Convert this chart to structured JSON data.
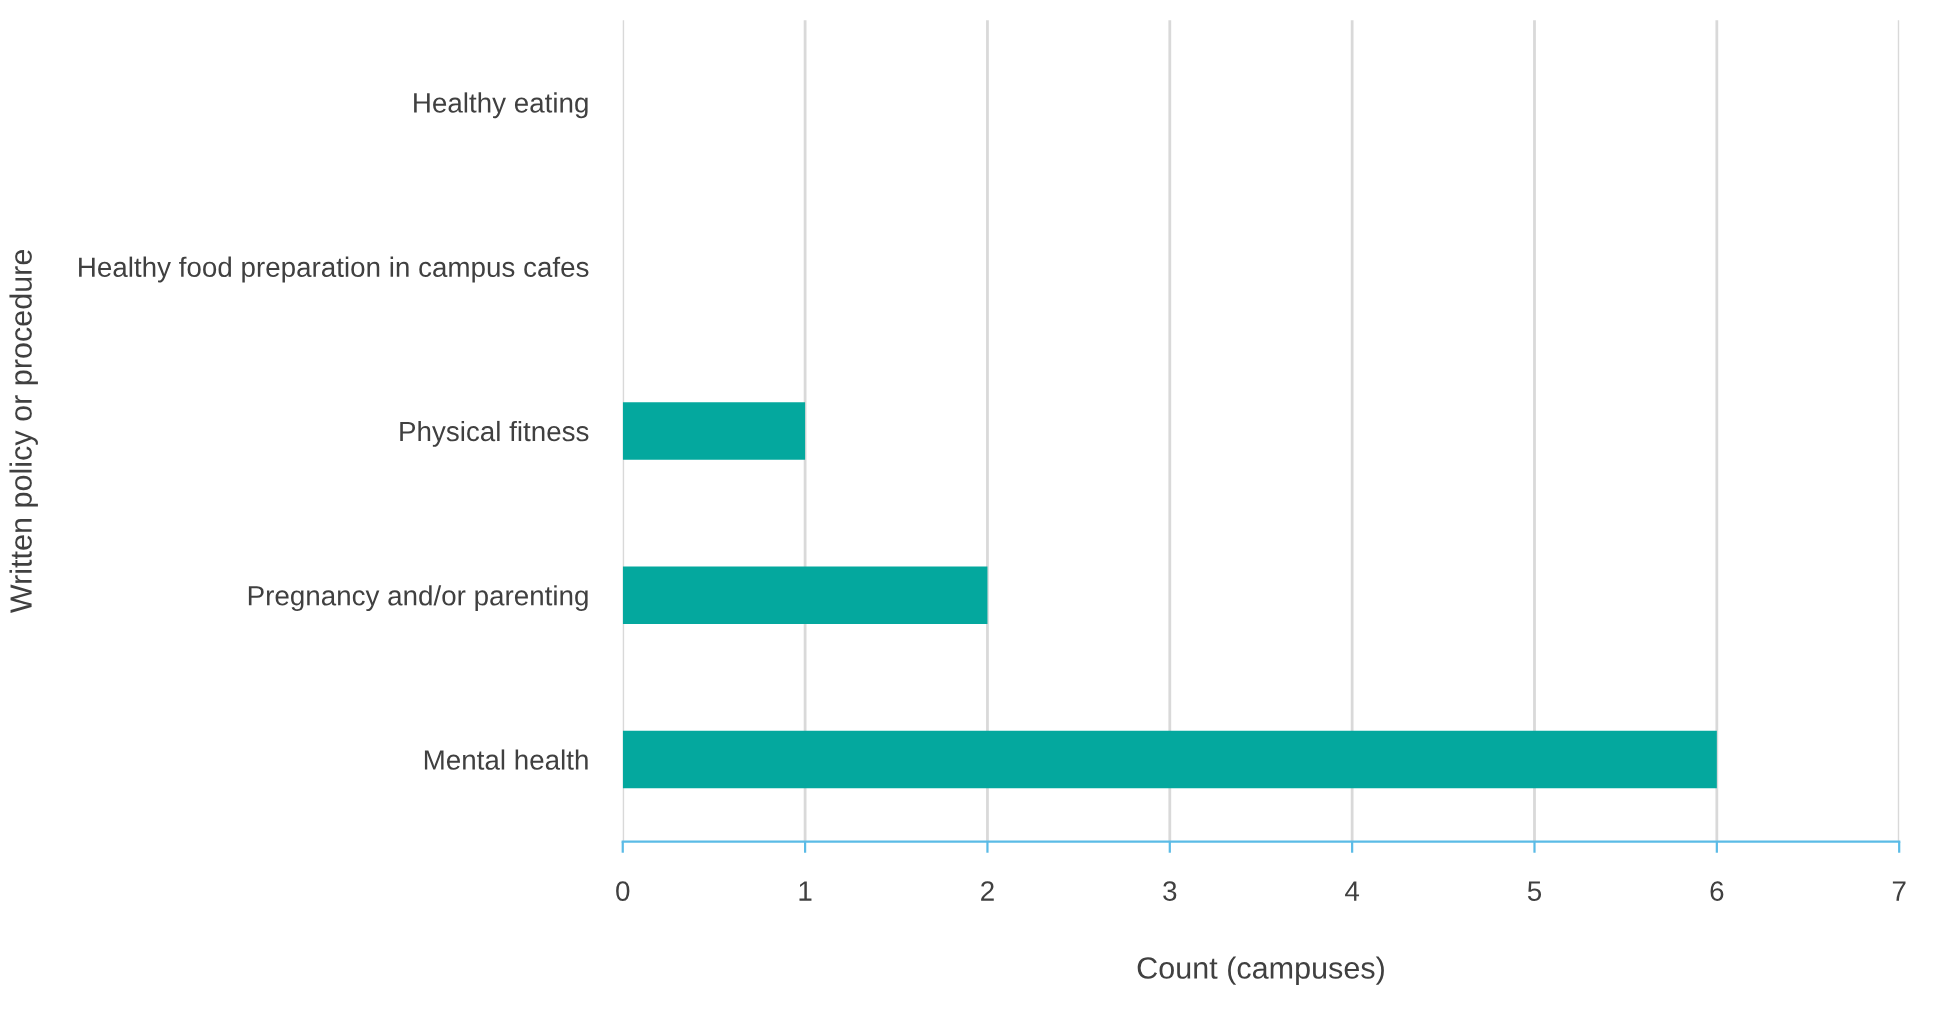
{
  "chart_data": {
    "type": "bar",
    "orientation": "horizontal",
    "xlabel": "Count (campuses)",
    "ylabel": "Written policy or procedure",
    "categories": [
      "Healthy eating",
      "Healthy food preparation in campus cafes",
      "Physical fitness",
      "Pregnancy and/or parenting",
      "Mental health"
    ],
    "values": [
      0,
      0,
      1,
      2,
      6
    ],
    "color": "#04a89e",
    "xlim": [
      0,
      7
    ],
    "xticks": [
      0,
      1,
      2,
      3,
      4,
      5,
      6,
      7
    ],
    "grid": "x"
  }
}
